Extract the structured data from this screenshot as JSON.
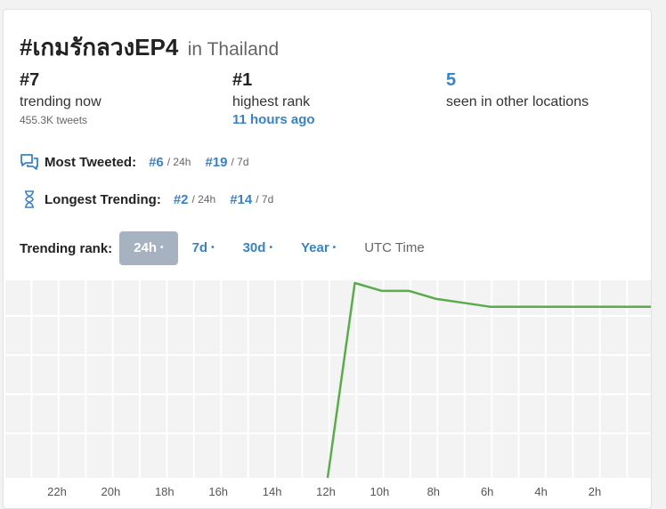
{
  "header": {
    "hashtag": "#เกมรักลวงEP4",
    "location": "in Thailand"
  },
  "stats": {
    "current_rank": "#7",
    "current_label": "trending now",
    "tweets": "455.3K tweets",
    "highest_rank": "#1",
    "highest_label": "highest rank",
    "highest_time": "11 hours ago",
    "other_locations_count": "5",
    "other_locations_label": "seen in other locations"
  },
  "most_tweeted": {
    "label": "Most Tweeted:",
    "rank_24h": "#6",
    "period_24h": "/ 24h",
    "rank_7d": "#19",
    "period_7d": "/ 7d"
  },
  "longest_trending": {
    "label": "Longest Trending:",
    "rank_24h": "#2",
    "period_24h": "/ 24h",
    "rank_7d": "#14",
    "period_7d": "/ 7d"
  },
  "trending_rank": {
    "label": "Trending rank:",
    "tabs": [
      {
        "label": "24h",
        "active": true
      },
      {
        "label": "7d",
        "active": false
      },
      {
        "label": "30d",
        "active": false
      },
      {
        "label": "Year",
        "active": false
      }
    ],
    "time_toggle": "UTC Time",
    "dot": "•"
  },
  "colors": {
    "accent": "#3b82c4",
    "line": "#5aab4a",
    "active_tab": "#a6b2bf"
  },
  "icons": {
    "most_tweeted": "chat-bubbles-icon",
    "longest_trending": "hourglass-icon"
  },
  "chart_data": {
    "type": "line",
    "x_tick_labels": [
      "22h",
      "20h",
      "18h",
      "16h",
      "14h",
      "12h",
      "10h",
      "8h",
      "6h",
      "4h",
      "2h"
    ],
    "grid": true,
    "note_rank_scale": "higher point = better rank",
    "series": [
      {
        "hours_ago": [
          12,
          11,
          10,
          9,
          8,
          7,
          6,
          5,
          4,
          3,
          2,
          1,
          0
        ],
        "rank": [
          50,
          1,
          3,
          3,
          5,
          6,
          7,
          7,
          7,
          7,
          7,
          7,
          7
        ]
      }
    ],
    "x_range_hours_ago": [
      24,
      0
    ],
    "y_range_rank": [
      1,
      50
    ]
  }
}
